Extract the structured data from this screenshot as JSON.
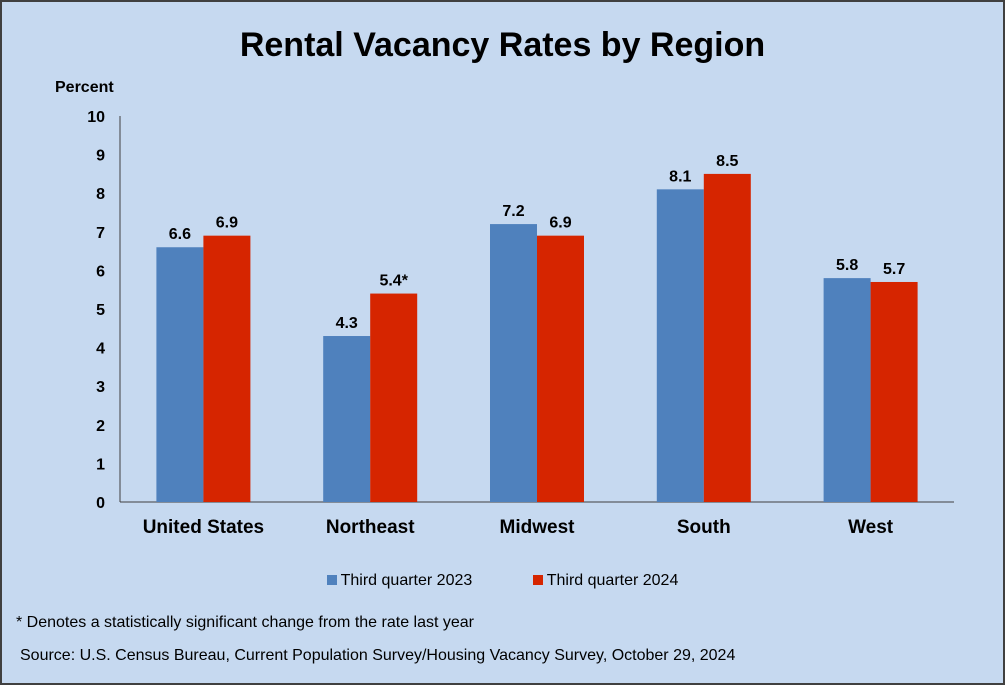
{
  "chart_data": {
    "type": "bar",
    "title": "Rental Vacancy Rates by Region",
    "ylabel": "Percent",
    "xlabel": "",
    "ylim": [
      0,
      10
    ],
    "yticks": [
      0,
      1,
      2,
      3,
      4,
      5,
      6,
      7,
      8,
      9,
      10
    ],
    "grid": false,
    "legend_position": "bottom",
    "categories": [
      "United States",
      "Northeast",
      "Midwest",
      "South",
      "West"
    ],
    "series": [
      {
        "name": "Third quarter 2023",
        "color": "#4f81bd",
        "values": [
          6.6,
          4.3,
          7.2,
          8.1,
          5.8
        ],
        "labels": [
          "6.6",
          "4.3",
          "7.2",
          "8.1",
          "5.8"
        ]
      },
      {
        "name": "Third quarter 2024",
        "color": "#d62500",
        "values": [
          6.9,
          5.4,
          6.9,
          8.5,
          5.7
        ],
        "labels": [
          "6.9",
          "5.4*",
          "6.9",
          "8.5",
          "5.7"
        ]
      }
    ]
  },
  "footnote": "* Denotes a statistically significant change from the rate last year",
  "source": "Source: U.S. Census Bureau, Current Population Survey/Housing Vacancy Survey, October 29, 2024"
}
